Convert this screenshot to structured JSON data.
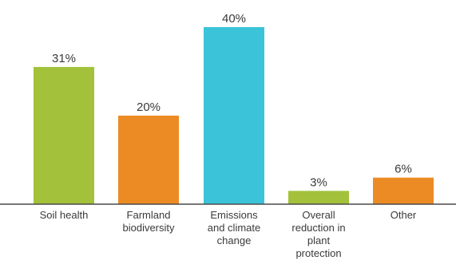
{
  "chart_data": {
    "type": "bar",
    "categories": [
      "Soil health",
      "Farmland\nbiodiversity",
      "Emissions\nand climate\nchange",
      "Overall\nreduction in\nplant\nprotection",
      "Other"
    ],
    "values": [
      31,
      20,
      40,
      3,
      6
    ],
    "value_labels": [
      "31%",
      "20%",
      "40%",
      "3%",
      "6%"
    ],
    "bar_colors": [
      "#a3c13a",
      "#ec8b23",
      "#3bc3d9",
      "#a3c13a",
      "#ec8b23"
    ],
    "ylim": [
      0,
      40
    ],
    "grid": false,
    "legend": "none"
  }
}
